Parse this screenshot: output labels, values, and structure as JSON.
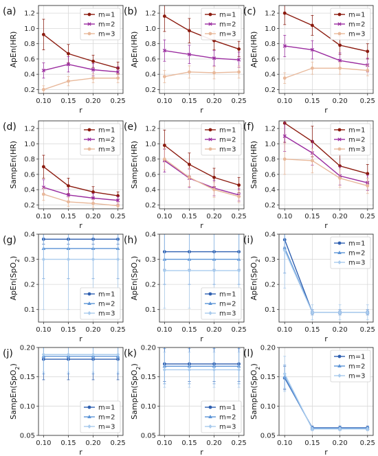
{
  "chart_data": [
    {
      "panel": "(a)",
      "type": "line",
      "ylabel": "ApEn(HR)",
      "xlabel": "r",
      "x": [
        0.1,
        0.15,
        0.2,
        0.25
      ],
      "xticks": [
        "0.10",
        "0.15",
        "0.20",
        "0.25"
      ],
      "ylim": [
        0.15,
        1.3
      ],
      "yticks": [
        "0.2",
        "0.4",
        "0.6",
        "0.8",
        "1.0",
        "1.2"
      ],
      "legend_position": "top-right",
      "series": [
        {
          "name": "m=1",
          "color": "#8b1a0e",
          "marker": "circle",
          "values": [
            0.92,
            0.67,
            0.57,
            0.48
          ],
          "err": [
            0.2,
            0.12,
            0.08,
            0.08
          ]
        },
        {
          "name": "m=2",
          "color": "#9a2b9f",
          "marker": "x",
          "values": [
            0.45,
            0.53,
            0.46,
            0.43
          ],
          "err": [
            0.1,
            0.1,
            0.08,
            0.07
          ]
        },
        {
          "name": "m=3",
          "color": "#e8b89a",
          "marker": "circle",
          "values": [
            0.2,
            0.31,
            0.35,
            0.35
          ],
          "err": [
            0.05,
            0.06,
            0.06,
            0.06
          ]
        }
      ]
    },
    {
      "panel": "(b)",
      "type": "line",
      "ylabel": "ApEn(HR)",
      "xlabel": "r",
      "x": [
        0.1,
        0.15,
        0.2,
        0.25
      ],
      "xticks": [
        "0.10",
        "0.15",
        "0.20",
        "0.25"
      ],
      "ylim": [
        0.15,
        1.3
      ],
      "yticks": [
        "0.2",
        "0.4",
        "0.6",
        "0.8",
        "1.0",
        "1.2"
      ],
      "legend_position": "top-right",
      "series": [
        {
          "name": "m=1",
          "color": "#8b1a0e",
          "marker": "circle",
          "values": [
            1.16,
            0.97,
            0.84,
            0.73
          ],
          "err": [
            0.2,
            0.16,
            0.12,
            0.1
          ]
        },
        {
          "name": "m=2",
          "color": "#9a2b9f",
          "marker": "x",
          "values": [
            0.71,
            0.66,
            0.61,
            0.59
          ],
          "err": [
            0.14,
            0.12,
            0.1,
            0.1
          ]
        },
        {
          "name": "m=3",
          "color": "#e8b89a",
          "marker": "circle",
          "values": [
            0.37,
            0.43,
            0.42,
            0.43
          ],
          "err": [
            0.08,
            0.08,
            0.08,
            0.08
          ]
        }
      ]
    },
    {
      "panel": "(c)",
      "type": "line",
      "ylabel": "ApEn(HR)",
      "xlabel": "r",
      "x": [
        0.1,
        0.15,
        0.2,
        0.25
      ],
      "xticks": [
        "0.10",
        "0.15",
        "0.20",
        "0.25"
      ],
      "ylim": [
        0.15,
        1.3
      ],
      "yticks": [
        "0.2",
        "0.4",
        "0.6",
        "0.8",
        "1.0",
        "1.2"
      ],
      "legend_position": "top-right",
      "series": [
        {
          "name": "m=1",
          "color": "#8b1a0e",
          "marker": "circle",
          "values": [
            1.2,
            1.04,
            0.78,
            0.7
          ],
          "err": [
            0.15,
            0.13,
            0.12,
            0.1
          ]
        },
        {
          "name": "m=2",
          "color": "#9a2b9f",
          "marker": "x",
          "values": [
            0.77,
            0.72,
            0.58,
            0.52
          ],
          "err": [
            0.14,
            0.12,
            0.1,
            0.09
          ]
        },
        {
          "name": "m=3",
          "color": "#e8b89a",
          "marker": "circle",
          "values": [
            0.35,
            0.48,
            0.48,
            0.45
          ],
          "err": [
            0.07,
            0.08,
            0.08,
            0.07
          ]
        }
      ]
    },
    {
      "panel": "(d)",
      "type": "line",
      "ylabel": "SampEn(HR)",
      "xlabel": "r",
      "x": [
        0.1,
        0.15,
        0.2,
        0.25
      ],
      "xticks": [
        "0.10",
        "0.15",
        "0.20",
        "0.25"
      ],
      "ylim": [
        0.15,
        1.3
      ],
      "yticks": [
        "0.2",
        "0.4",
        "0.6",
        "0.8",
        "1.0",
        "1.2"
      ],
      "legend_position": "top-right",
      "series": [
        {
          "name": "m=1",
          "color": "#8b1a0e",
          "marker": "circle",
          "values": [
            0.7,
            0.45,
            0.37,
            0.32
          ],
          "err": [
            0.15,
            0.1,
            0.07,
            0.05
          ]
        },
        {
          "name": "m=2",
          "color": "#9a2b9f",
          "marker": "x",
          "values": [
            0.43,
            0.33,
            0.29,
            0.26
          ],
          "err": [
            0.1,
            0.08,
            0.06,
            0.05
          ]
        },
        {
          "name": "m=3",
          "color": "#e8b89a",
          "marker": "circle",
          "values": [
            0.34,
            0.24,
            0.22,
            0.19
          ],
          "err": [
            0.08,
            0.06,
            0.05,
            0.04
          ]
        }
      ]
    },
    {
      "panel": "(e)",
      "type": "line",
      "ylabel": "SampEn(HR)",
      "xlabel": "r",
      "x": [
        0.1,
        0.15,
        0.2,
        0.25
      ],
      "xticks": [
        "0.10",
        "0.15",
        "0.20",
        "0.25"
      ],
      "ylim": [
        0.15,
        1.3
      ],
      "yticks": [
        "0.2",
        "0.4",
        "0.6",
        "0.8",
        "1.0",
        "1.2"
      ],
      "legend_position": "top-right",
      "series": [
        {
          "name": "m=1",
          "color": "#8b1a0e",
          "marker": "circle",
          "values": [
            0.98,
            0.73,
            0.56,
            0.46
          ],
          "err": [
            0.2,
            0.15,
            0.12,
            0.1
          ]
        },
        {
          "name": "m=2",
          "color": "#9a2b9f",
          "marker": "x",
          "values": [
            0.78,
            0.55,
            0.42,
            0.33
          ],
          "err": [
            0.15,
            0.12,
            0.1,
            0.08
          ]
        },
        {
          "name": "m=3",
          "color": "#e8b89a",
          "marker": "circle",
          "values": [
            0.8,
            0.56,
            0.4,
            0.31
          ],
          "err": [
            0.14,
            0.12,
            0.1,
            0.08
          ]
        }
      ]
    },
    {
      "panel": "(f)",
      "type": "line",
      "ylabel": "SampEn(HR)",
      "xlabel": "r",
      "x": [
        0.1,
        0.15,
        0.2,
        0.25
      ],
      "xticks": [
        "0.10",
        "0.15",
        "0.20",
        "0.25"
      ],
      "ylim": [
        0.15,
        1.3
      ],
      "yticks": [
        "0.2",
        "0.4",
        "0.6",
        "0.8",
        "1.0",
        "1.2"
      ],
      "legend_position": "top-right",
      "series": [
        {
          "name": "m=1",
          "color": "#8b1a0e",
          "marker": "circle",
          "values": [
            1.27,
            1.03,
            0.71,
            0.61
          ],
          "err": [
            0.25,
            0.2,
            0.15,
            0.12
          ]
        },
        {
          "name": "m=2",
          "color": "#9a2b9f",
          "marker": "x",
          "values": [
            1.1,
            0.88,
            0.58,
            0.49
          ],
          "err": [
            0.2,
            0.16,
            0.12,
            0.1
          ]
        },
        {
          "name": "m=3",
          "color": "#e8b89a",
          "marker": "circle",
          "values": [
            0.8,
            0.78,
            0.55,
            0.45
          ],
          "err": [
            0.2,
            0.16,
            0.12,
            0.1
          ]
        }
      ]
    },
    {
      "panel": "(g)",
      "type": "line",
      "ylabel": "ApEn(SpO2)",
      "xlabel": "r",
      "x": [
        0.1,
        0.15,
        0.2,
        0.25
      ],
      "xticks": [
        "0.10",
        "0.15",
        "0.20",
        "0.25"
      ],
      "ylim": [
        0.05,
        0.4
      ],
      "yticks": [
        "0.1",
        "0.2",
        "0.3",
        "0.4"
      ],
      "legend_position": "bottom-right",
      "series": [
        {
          "name": "m=1",
          "color": "#2e5fb0",
          "marker": "circle",
          "values": [
            0.38,
            0.38,
            0.38,
            0.38
          ],
          "err": [
            0.02,
            0.02,
            0.02,
            0.02
          ]
        },
        {
          "name": "m=2",
          "color": "#5b93d6",
          "marker": "triangle",
          "values": [
            0.343,
            0.343,
            0.343,
            0.343
          ],
          "err": [
            0.12,
            0.12,
            0.12,
            0.12
          ]
        },
        {
          "name": "m=3",
          "color": "#a9cbed",
          "marker": "diamond",
          "values": [
            0.3,
            0.3,
            0.3,
            0.3
          ],
          "err": [
            0.2,
            0.2,
            0.2,
            0.2
          ]
        }
      ]
    },
    {
      "panel": "(h)",
      "type": "line",
      "ylabel": "ApEn(SpO2)",
      "xlabel": "r",
      "x": [
        0.1,
        0.15,
        0.2,
        0.25
      ],
      "xticks": [
        "0.10",
        "0.15",
        "0.20",
        "0.25"
      ],
      "ylim": [
        0.05,
        0.4
      ],
      "yticks": [
        "0.1",
        "0.2",
        "0.3",
        "0.4"
      ],
      "legend_position": "bottom-right",
      "series": [
        {
          "name": "m=1",
          "color": "#2e5fb0",
          "marker": "circle",
          "values": [
            0.33,
            0.33,
            0.33,
            0.33
          ],
          "err": [
            0.07,
            0.07,
            0.07,
            0.07
          ]
        },
        {
          "name": "m=2",
          "color": "#5b93d6",
          "marker": "triangle",
          "values": [
            0.3,
            0.3,
            0.3,
            0.3
          ],
          "err": [
            0.1,
            0.1,
            0.1,
            0.1
          ]
        },
        {
          "name": "m=3",
          "color": "#a9cbed",
          "marker": "diamond",
          "values": [
            0.255,
            0.255,
            0.255,
            0.255
          ],
          "err": [
            0.15,
            0.15,
            0.15,
            0.15
          ]
        }
      ]
    },
    {
      "panel": "(i)",
      "type": "line",
      "ylabel": "ApEn(SpO2)",
      "xlabel": "r",
      "x": [
        0.1,
        0.15,
        0.2,
        0.25
      ],
      "xticks": [
        "0.10",
        "0.15",
        "0.20",
        "0.25"
      ],
      "ylim": [
        0.05,
        0.4
      ],
      "yticks": [
        "0.1",
        "0.2",
        "0.3",
        "0.4"
      ],
      "legend_position": "top-right",
      "series": [
        {
          "name": "m=1",
          "color": "#2e5fb0",
          "marker": "circle",
          "values": [
            0.378,
            0.089,
            0.089,
            0.089
          ],
          "err": [
            0.03,
            0.01,
            0.01,
            0.01
          ]
        },
        {
          "name": "m=2",
          "color": "#5b93d6",
          "marker": "triangle",
          "values": [
            0.345,
            0.089,
            0.089,
            0.089
          ],
          "err": [
            0.1,
            0.01,
            0.01,
            0.01
          ]
        },
        {
          "name": "m=3",
          "color": "#a9cbed",
          "marker": "diamond",
          "values": [
            0.335,
            0.089,
            0.089,
            0.089
          ],
          "err": [
            0.15,
            0.03,
            0.03,
            0.03
          ]
        }
      ]
    },
    {
      "panel": "(j)",
      "type": "line",
      "ylabel": "SampEn(SpO2)",
      "xlabel": "r",
      "x": [
        0.1,
        0.15,
        0.2,
        0.25
      ],
      "xticks": [
        "0.10",
        "0.15",
        "0.20",
        "0.25"
      ],
      "ylim": [
        0.05,
        0.2
      ],
      "yticks": [
        "0.05",
        "0.10",
        "0.15",
        "0.20"
      ],
      "legend_position": "bottom-right",
      "series": [
        {
          "name": "m=1",
          "color": "#2e5fb0",
          "marker": "circle",
          "values": [
            0.18,
            0.18,
            0.18,
            0.18
          ],
          "err": [
            0.035,
            0.035,
            0.035,
            0.035
          ]
        },
        {
          "name": "m=2",
          "color": "#5b93d6",
          "marker": "triangle",
          "values": [
            0.185,
            0.185,
            0.185,
            0.185
          ],
          "err": [
            0.03,
            0.03,
            0.03,
            0.03
          ]
        },
        {
          "name": "m=3",
          "color": "#a9cbed",
          "marker": "diamond",
          "values": [
            0.188,
            0.188,
            0.188,
            0.188
          ],
          "err": [
            0.03,
            0.03,
            0.03,
            0.03
          ]
        }
      ]
    },
    {
      "panel": "(k)",
      "type": "line",
      "ylabel": "SampEn(SpO2)",
      "xlabel": "r",
      "x": [
        0.1,
        0.15,
        0.2,
        0.25
      ],
      "xticks": [
        "0.10",
        "0.15",
        "0.20",
        "0.25"
      ],
      "ylim": [
        0.05,
        0.2
      ],
      "yticks": [
        "0.05",
        "0.10",
        "0.15",
        "0.20"
      ],
      "legend_position": "bottom-right",
      "series": [
        {
          "name": "m=1",
          "color": "#2e5fb0",
          "marker": "circle",
          "values": [
            0.172,
            0.172,
            0.172,
            0.172
          ],
          "err": [
            0.03,
            0.03,
            0.03,
            0.03
          ]
        },
        {
          "name": "m=2",
          "color": "#5b93d6",
          "marker": "triangle",
          "values": [
            0.168,
            0.168,
            0.168,
            0.168
          ],
          "err": [
            0.03,
            0.03,
            0.03,
            0.03
          ]
        },
        {
          "name": "m=3",
          "color": "#a9cbed",
          "marker": "diamond",
          "values": [
            0.162,
            0.162,
            0.162,
            0.162
          ],
          "err": [
            0.03,
            0.03,
            0.03,
            0.03
          ]
        }
      ]
    },
    {
      "panel": "(l)",
      "type": "line",
      "ylabel": "SampEn(SpO2)",
      "xlabel": "r",
      "x": [
        0.1,
        0.15,
        0.2,
        0.25
      ],
      "xticks": [
        "0.10",
        "0.15",
        "0.20",
        "0.25"
      ],
      "ylim": [
        0.05,
        0.2
      ],
      "yticks": [
        "0.05",
        "0.10",
        "0.15",
        "0.20"
      ],
      "legend_position": "top-right",
      "series": [
        {
          "name": "m=1",
          "color": "#2e5fb0",
          "marker": "circle",
          "values": [
            0.148,
            0.063,
            0.063,
            0.063
          ],
          "err": [
            0.02,
            0.003,
            0.003,
            0.003
          ]
        },
        {
          "name": "m=2",
          "color": "#5b93d6",
          "marker": "triangle",
          "values": [
            0.15,
            0.062,
            0.062,
            0.062
          ],
          "err": [
            0.02,
            0.003,
            0.003,
            0.003
          ]
        },
        {
          "name": "m=3",
          "color": "#a9cbed",
          "marker": "diamond",
          "values": [
            0.155,
            0.061,
            0.061,
            0.061
          ],
          "err": [
            0.03,
            0.003,
            0.003,
            0.003
          ]
        }
      ]
    }
  ]
}
